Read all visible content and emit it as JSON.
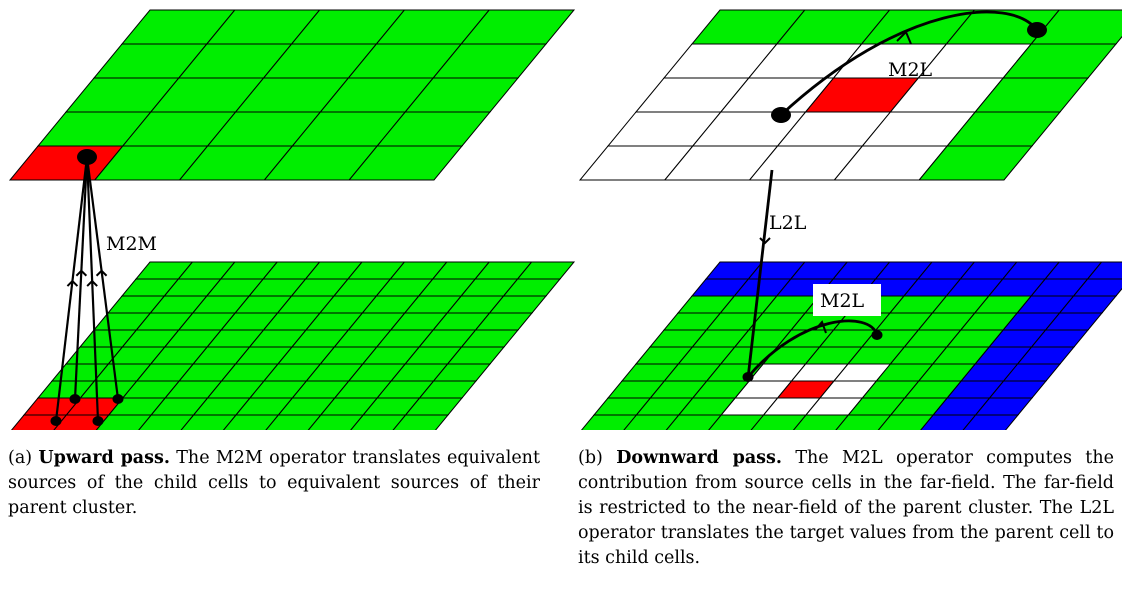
{
  "labels": {
    "m2m": "M2M",
    "m2l_top": "M2L",
    "l2l": "L2L",
    "m2l_bottom": "M2L"
  },
  "captions": {
    "a": {
      "tag": "(a)",
      "title": "Upward pass.",
      "text": "The M2M operator translates equivalent sources of the child cells to equivalent sources of their parent cluster."
    },
    "b": {
      "tag": "(b)",
      "title": "Downward pass.",
      "text": "The M2L operator computes the contribution from source cells in the far-field. The far-field is restricted to the near-field of the parent cluster. The L2L operator translates the target values from the parent cell to its child cells."
    }
  },
  "colors": {
    "green": "#00ee00",
    "red": "#ff0000",
    "blue": "#0000ff",
    "white": "#ffffff",
    "line": "#000000"
  }
}
